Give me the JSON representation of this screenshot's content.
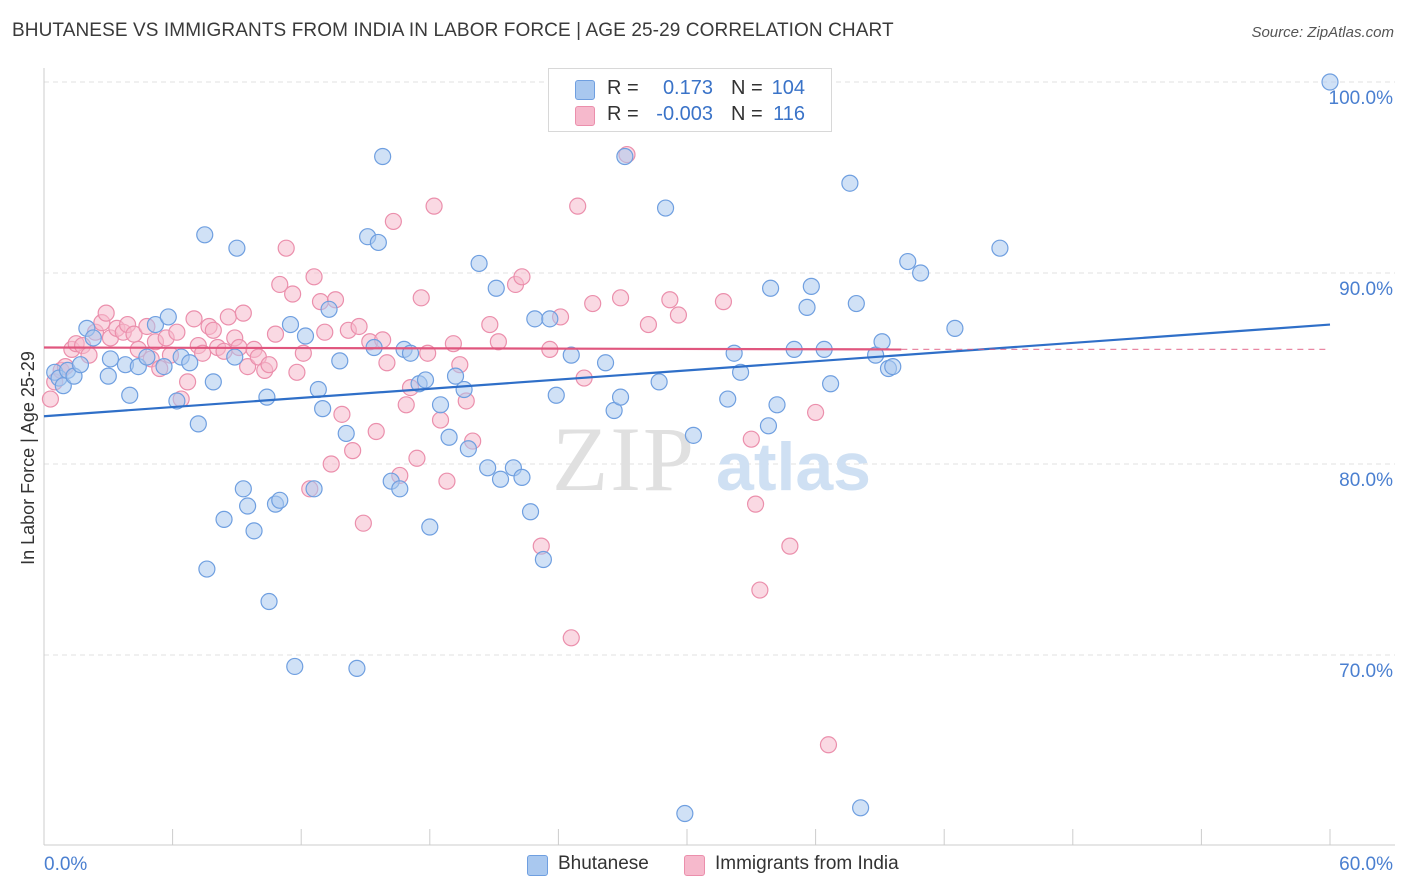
{
  "header": {
    "title": "BHUTANESE VS IMMIGRANTS FROM INDIA IN LABOR FORCE | AGE 25-29 CORRELATION CHART",
    "source": "Source: ZipAtlas.com"
  },
  "watermark": {
    "zip": "ZIP",
    "atlas": "atlas"
  },
  "legend": {
    "rows": [
      {
        "r_label": "R =",
        "r_value": "0.173",
        "n_label": "N =",
        "n_value": "104"
      },
      {
        "r_label": "R =",
        "r_value": "-0.003",
        "n_label": "N =",
        "n_value": "116"
      }
    ]
  },
  "bottom_legend": [
    "Bhutanese",
    "Immigrants from India"
  ],
  "colors": {
    "bhutanese_fill": "#a9c8ef",
    "bhutanese_stroke": "#6f9fe0",
    "bhutanese_line": "#2f6fc8",
    "india_fill": "#f6b9cc",
    "india_stroke": "#eb8fac",
    "india_line": "#e0567e",
    "tick_text": "#4a7fd0",
    "grid": "#e2e2e2"
  },
  "chart_data": {
    "type": "scatter",
    "title": "BHUTANESE VS IMMIGRANTS FROM INDIA IN LABOR FORCE | AGE 25-29 CORRELATION CHART",
    "xlabel": "",
    "ylabel": "In Labor Force | Age 25-29",
    "xlim": [
      0,
      60
    ],
    "ylim": [
      60,
      100
    ],
    "x_tick_labels": [
      "0.0%",
      "60.0%"
    ],
    "y_ticks": [
      70,
      80,
      90,
      100
    ],
    "y_tick_labels": [
      "70.0%",
      "80.0%",
      "90.0%",
      "100.0%"
    ],
    "grid": true,
    "legend_placement": "top-center",
    "series": [
      {
        "name": "Bhutanese",
        "R": 0.173,
        "N": 104,
        "trend": {
          "x": [
            0,
            60
          ],
          "y": [
            82.5,
            87.3
          ]
        },
        "points": [
          [
            0.5,
            84.8
          ],
          [
            0.7,
            84.5
          ],
          [
            0.9,
            84.1
          ],
          [
            1.1,
            84.9
          ],
          [
            1.4,
            84.6
          ],
          [
            1.7,
            85.2
          ],
          [
            2.0,
            87.1
          ],
          [
            2.3,
            86.6
          ],
          [
            3.1,
            85.5
          ],
          [
            3.0,
            84.6
          ],
          [
            3.8,
            85.2
          ],
          [
            4.0,
            83.6
          ],
          [
            4.4,
            85.1
          ],
          [
            4.8,
            85.6
          ],
          [
            5.2,
            87.3
          ],
          [
            5.6,
            85.1
          ],
          [
            5.8,
            87.7
          ],
          [
            6.2,
            83.3
          ],
          [
            6.4,
            85.6
          ],
          [
            6.8,
            85.3
          ],
          [
            7.2,
            82.1
          ],
          [
            7.6,
            74.5
          ],
          [
            7.5,
            92.0
          ],
          [
            7.9,
            84.3
          ],
          [
            8.4,
            77.1
          ],
          [
            8.9,
            85.6
          ],
          [
            9.0,
            91.3
          ],
          [
            9.3,
            78.7
          ],
          [
            9.5,
            77.8
          ],
          [
            9.8,
            76.5
          ],
          [
            10.4,
            83.5
          ],
          [
            10.5,
            72.8
          ],
          [
            10.8,
            77.9
          ],
          [
            11.0,
            78.1
          ],
          [
            11.5,
            87.3
          ],
          [
            11.7,
            69.4
          ],
          [
            12.2,
            86.7
          ],
          [
            12.6,
            78.7
          ],
          [
            12.8,
            83.9
          ],
          [
            13.0,
            82.9
          ],
          [
            13.3,
            88.1
          ],
          [
            13.8,
            85.4
          ],
          [
            14.1,
            81.6
          ],
          [
            14.6,
            69.3
          ],
          [
            15.1,
            91.9
          ],
          [
            15.4,
            86.1
          ],
          [
            15.6,
            91.6
          ],
          [
            15.8,
            96.1
          ],
          [
            16.2,
            79.1
          ],
          [
            16.6,
            78.7
          ],
          [
            16.8,
            86.0
          ],
          [
            17.1,
            85.8
          ],
          [
            17.5,
            84.2
          ],
          [
            17.8,
            84.4
          ],
          [
            18.0,
            76.7
          ],
          [
            18.5,
            83.1
          ],
          [
            18.9,
            81.4
          ],
          [
            19.2,
            84.6
          ],
          [
            19.6,
            83.9
          ],
          [
            19.8,
            80.8
          ],
          [
            20.3,
            90.5
          ],
          [
            20.7,
            79.8
          ],
          [
            21.1,
            89.2
          ],
          [
            21.3,
            79.2
          ],
          [
            21.9,
            79.8
          ],
          [
            22.3,
            79.3
          ],
          [
            22.7,
            77.5
          ],
          [
            22.9,
            87.6
          ],
          [
            23.3,
            75.0
          ],
          [
            23.6,
            87.6
          ],
          [
            23.9,
            83.6
          ],
          [
            24.6,
            85.7
          ],
          [
            26.2,
            85.3
          ],
          [
            26.6,
            82.8
          ],
          [
            26.9,
            83.5
          ],
          [
            27.1,
            96.1
          ],
          [
            28.7,
            84.3
          ],
          [
            29.0,
            93.4
          ],
          [
            29.9,
            61.7
          ],
          [
            30.3,
            81.5
          ],
          [
            31.9,
            83.4
          ],
          [
            32.2,
            85.8
          ],
          [
            32.5,
            84.8
          ],
          [
            33.8,
            82.0
          ],
          [
            33.9,
            89.2
          ],
          [
            34.2,
            83.1
          ],
          [
            35.0,
            86.0
          ],
          [
            35.6,
            88.2
          ],
          [
            35.8,
            89.3
          ],
          [
            36.4,
            86.0
          ],
          [
            36.7,
            84.2
          ],
          [
            37.6,
            94.7
          ],
          [
            37.9,
            88.4
          ],
          [
            38.1,
            62.0
          ],
          [
            38.8,
            85.7
          ],
          [
            39.1,
            86.4
          ],
          [
            39.4,
            85.0
          ],
          [
            39.6,
            85.1
          ],
          [
            40.3,
            90.6
          ],
          [
            40.9,
            90.0
          ],
          [
            42.5,
            87.1
          ],
          [
            44.6,
            91.3
          ],
          [
            60.0,
            100.0
          ]
        ]
      },
      {
        "name": "Immigrants from India",
        "R": -0.003,
        "N": 116,
        "trend": {
          "x": [
            0,
            40
          ],
          "y": [
            86.1,
            86.0
          ],
          "dashed_to": 60
        },
        "points": [
          [
            0.3,
            83.4
          ],
          [
            0.5,
            84.3
          ],
          [
            0.8,
            84.9
          ],
          [
            1.0,
            85.1
          ],
          [
            1.3,
            86.0
          ],
          [
            1.5,
            86.3
          ],
          [
            1.8,
            86.2
          ],
          [
            2.1,
            85.7
          ],
          [
            2.4,
            86.9
          ],
          [
            2.7,
            87.4
          ],
          [
            2.9,
            87.9
          ],
          [
            3.1,
            86.6
          ],
          [
            3.4,
            87.1
          ],
          [
            3.7,
            86.9
          ],
          [
            3.9,
            87.3
          ],
          [
            4.2,
            86.8
          ],
          [
            4.4,
            86.0
          ],
          [
            4.8,
            87.2
          ],
          [
            5.0,
            85.5
          ],
          [
            5.2,
            86.4
          ],
          [
            5.4,
            85.0
          ],
          [
            5.7,
            86.6
          ],
          [
            5.9,
            85.7
          ],
          [
            6.2,
            86.9
          ],
          [
            6.4,
            83.4
          ],
          [
            6.7,
            84.3
          ],
          [
            7.0,
            87.6
          ],
          [
            7.2,
            86.2
          ],
          [
            7.4,
            85.8
          ],
          [
            7.7,
            87.2
          ],
          [
            7.9,
            87.0
          ],
          [
            8.1,
            86.1
          ],
          [
            8.4,
            85.9
          ],
          [
            8.6,
            87.7
          ],
          [
            8.9,
            86.6
          ],
          [
            9.1,
            86.1
          ],
          [
            9.3,
            87.9
          ],
          [
            9.5,
            85.1
          ],
          [
            9.8,
            86.0
          ],
          [
            10.0,
            85.6
          ],
          [
            10.3,
            84.9
          ],
          [
            10.5,
            85.2
          ],
          [
            10.8,
            86.8
          ],
          [
            11.0,
            89.4
          ],
          [
            11.3,
            91.3
          ],
          [
            11.6,
            88.9
          ],
          [
            11.8,
            84.8
          ],
          [
            12.1,
            85.8
          ],
          [
            12.4,
            78.7
          ],
          [
            12.6,
            89.8
          ],
          [
            12.9,
            88.5
          ],
          [
            13.1,
            86.9
          ],
          [
            13.4,
            80.0
          ],
          [
            13.6,
            88.6
          ],
          [
            13.9,
            82.6
          ],
          [
            14.2,
            87.0
          ],
          [
            14.4,
            80.7
          ],
          [
            14.7,
            87.2
          ],
          [
            14.9,
            76.9
          ],
          [
            15.2,
            86.4
          ],
          [
            15.5,
            81.7
          ],
          [
            15.8,
            86.5
          ],
          [
            16.0,
            85.3
          ],
          [
            16.3,
            92.7
          ],
          [
            16.6,
            79.4
          ],
          [
            16.9,
            83.1
          ],
          [
            17.1,
            84.0
          ],
          [
            17.4,
            80.3
          ],
          [
            17.6,
            88.7
          ],
          [
            17.9,
            85.8
          ],
          [
            18.2,
            93.5
          ],
          [
            18.5,
            82.3
          ],
          [
            18.8,
            79.1
          ],
          [
            19.1,
            86.3
          ],
          [
            19.4,
            85.2
          ],
          [
            19.7,
            83.3
          ],
          [
            20.0,
            81.2
          ],
          [
            20.8,
            87.3
          ],
          [
            21.2,
            86.4
          ],
          [
            22.0,
            89.4
          ],
          [
            22.3,
            89.8
          ],
          [
            23.2,
            75.7
          ],
          [
            23.6,
            86.0
          ],
          [
            24.1,
            87.7
          ],
          [
            24.6,
            70.9
          ],
          [
            24.9,
            93.5
          ],
          [
            25.2,
            84.5
          ],
          [
            25.6,
            88.4
          ],
          [
            26.9,
            88.7
          ],
          [
            27.2,
            96.2
          ],
          [
            28.2,
            87.3
          ],
          [
            29.2,
            88.6
          ],
          [
            29.6,
            87.8
          ],
          [
            31.7,
            88.5
          ],
          [
            33.0,
            81.3
          ],
          [
            33.2,
            77.9
          ],
          [
            33.4,
            73.4
          ],
          [
            34.8,
            75.7
          ],
          [
            36.0,
            82.7
          ],
          [
            36.6,
            65.3
          ]
        ]
      }
    ]
  }
}
